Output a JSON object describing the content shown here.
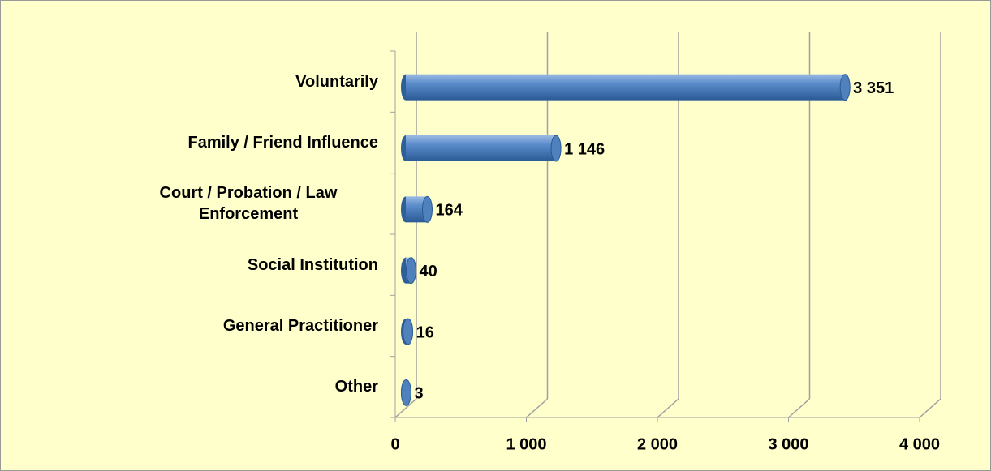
{
  "chart_data": {
    "type": "bar",
    "orientation": "horizontal",
    "categories": [
      "Voluntarily",
      "Family / Friend Influence",
      "Court / Probation / Law Enforcement",
      "Social Institution",
      "General Practitioner",
      "Other"
    ],
    "values": [
      3351,
      1146,
      164,
      40,
      16,
      3
    ],
    "value_labels": [
      "3 351",
      "1 146",
      "164",
      "40",
      "16",
      "3"
    ],
    "color": "#4f81bd",
    "xlim": [
      0,
      4000
    ],
    "xticks": [
      0,
      {
        "value": 1000,
        "label": "1 000"
      },
      {
        "value": 2000,
        "label": "2 000"
      },
      {
        "value": 3000,
        "label": "3 000"
      },
      {
        "value": 4000,
        "label": "4 000"
      }
    ],
    "grid": true
  }
}
